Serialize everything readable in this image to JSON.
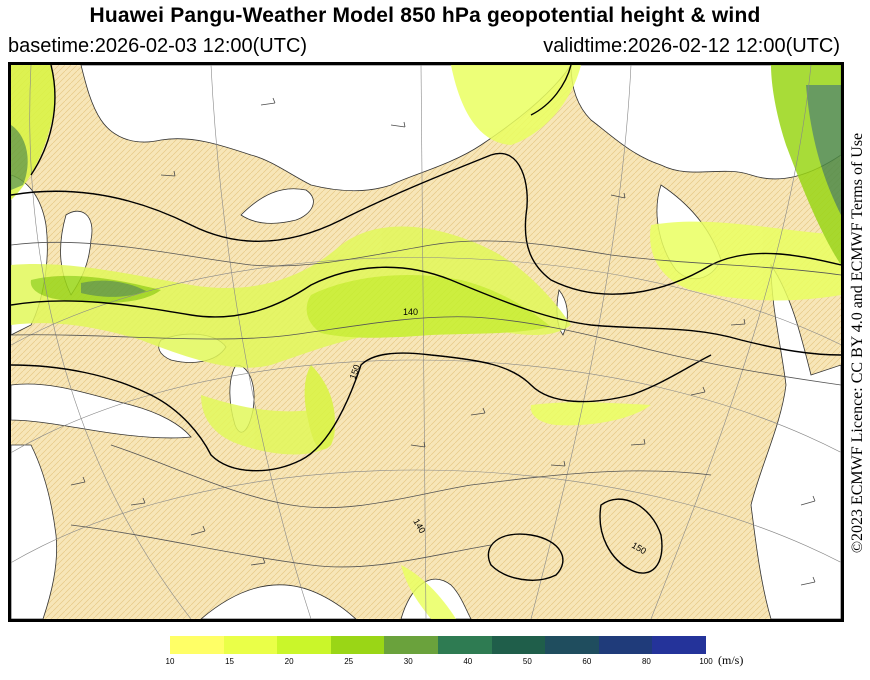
{
  "title": "Huawei Pangu-Weather Model 850 hPa geopotential height & wind",
  "basetime": "basetime:2026-02-03 12:00(UTC)",
  "validtime": "validtime:2026-02-12 12:00(UTC)",
  "credit": "©2023 ECMWF Licence: CC BY 4.0 and ECMWF Terms of Use",
  "contour_labels": [
    "140",
    "150",
    "140",
    "150"
  ],
  "colorbar": {
    "colors": [
      "#ffff66",
      "#eaff48",
      "#caf62a",
      "#9ad616",
      "#6aa23c",
      "#2e7b52",
      "#1f5e4a",
      "#1f4d5e",
      "#1f3b7a",
      "#24339a"
    ],
    "ticks": [
      "10",
      "15",
      "20",
      "25",
      "30",
      "40",
      "50",
      "60",
      "80",
      "100"
    ],
    "unit": "(m/s)"
  },
  "colors": {
    "land": "#f7e6b8",
    "sea": "#ffffff"
  }
}
